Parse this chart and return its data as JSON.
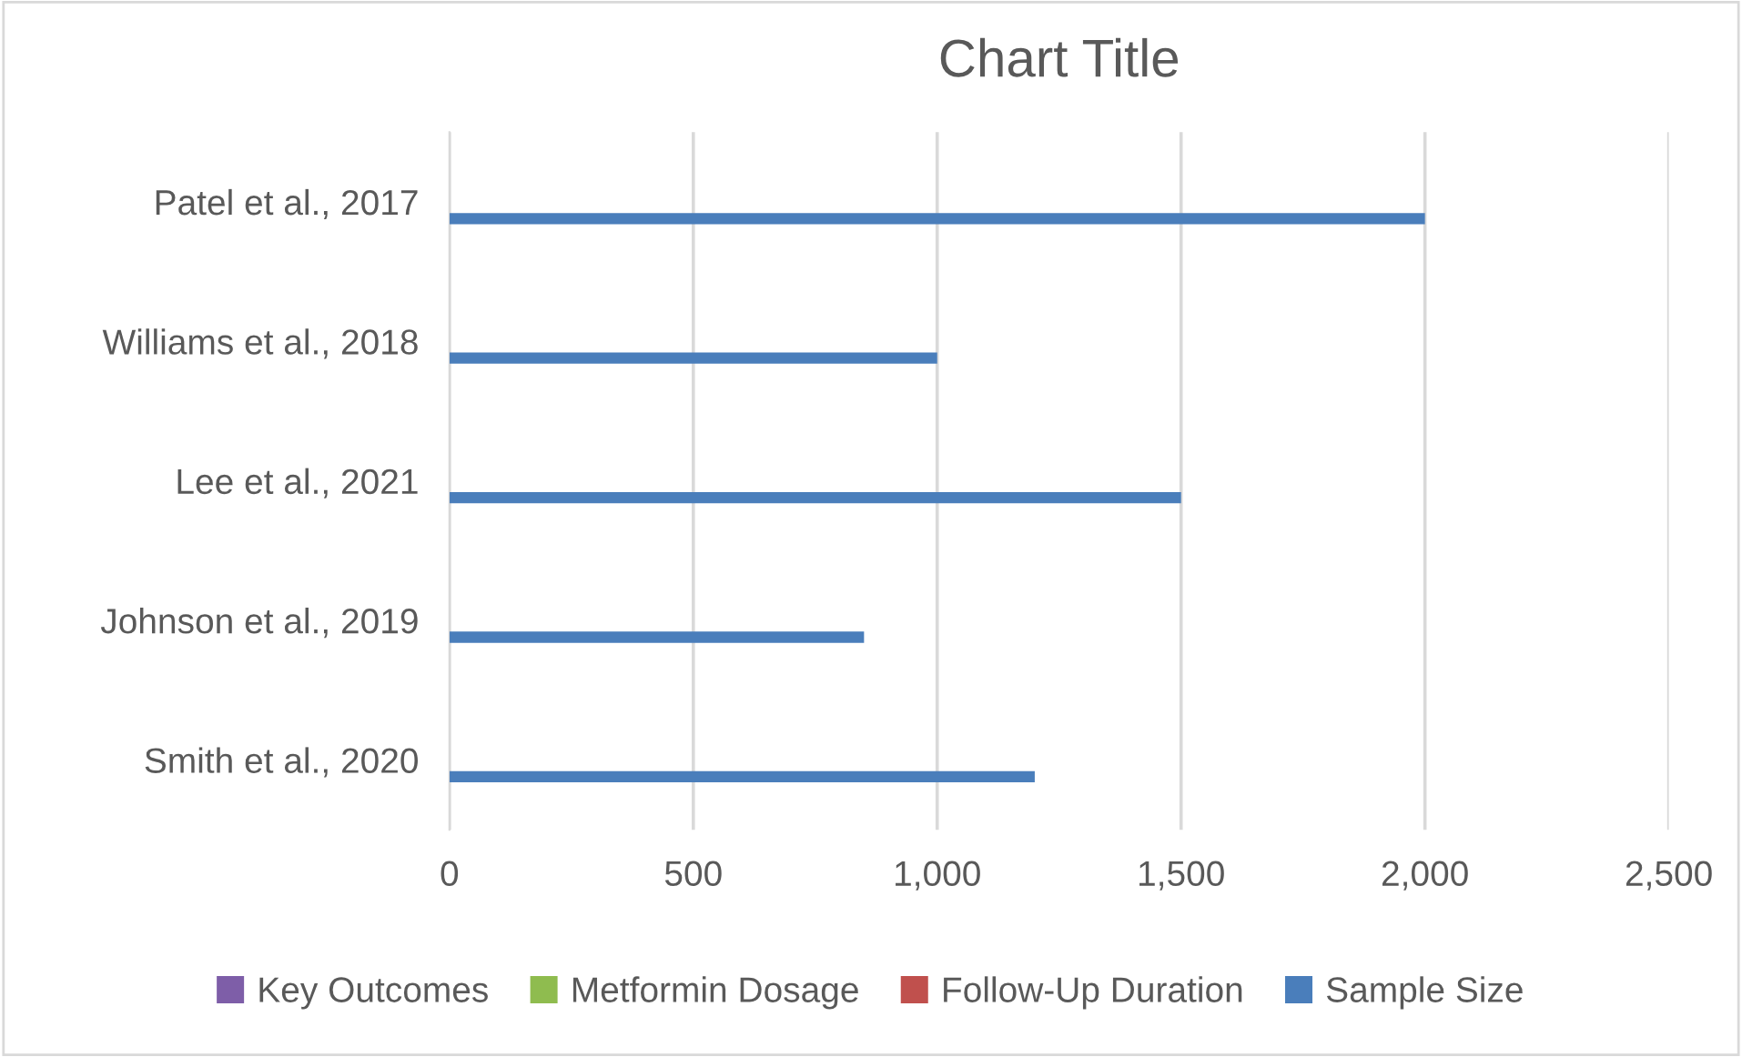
{
  "chart_data": {
    "type": "bar",
    "orientation": "horizontal",
    "title": "Chart Title",
    "categories": [
      "Patel et al., 2017",
      "Williams et al., 2018",
      "Lee et al., 2021",
      "Johnson et al., 2019",
      "Smith et al., 2020"
    ],
    "series": [
      {
        "name": "Key Outcomes",
        "color": "#7e5ea8",
        "values": [
          null,
          null,
          null,
          null,
          null
        ]
      },
      {
        "name": "Metformin Dosage",
        "color": "#8fbc4f",
        "values": [
          null,
          null,
          null,
          null,
          null
        ]
      },
      {
        "name": "Follow-Up Duration",
        "color": "#c0504d",
        "values": [
          null,
          null,
          null,
          null,
          null
        ]
      },
      {
        "name": "Sample Size",
        "color": "#4a7ebb",
        "values": [
          2000,
          1000,
          1500,
          850,
          1200
        ]
      }
    ],
    "xlim": [
      0,
      2500
    ],
    "xticks": [
      0,
      500,
      {
        "value": 1000,
        "label": "1,000"
      },
      {
        "value": 1500,
        "label": "1,500"
      },
      {
        "value": 2000,
        "label": "2,000"
      },
      {
        "value": 2500,
        "label": "2,500"
      }
    ],
    "grid": "x",
    "legend": "bottom"
  }
}
